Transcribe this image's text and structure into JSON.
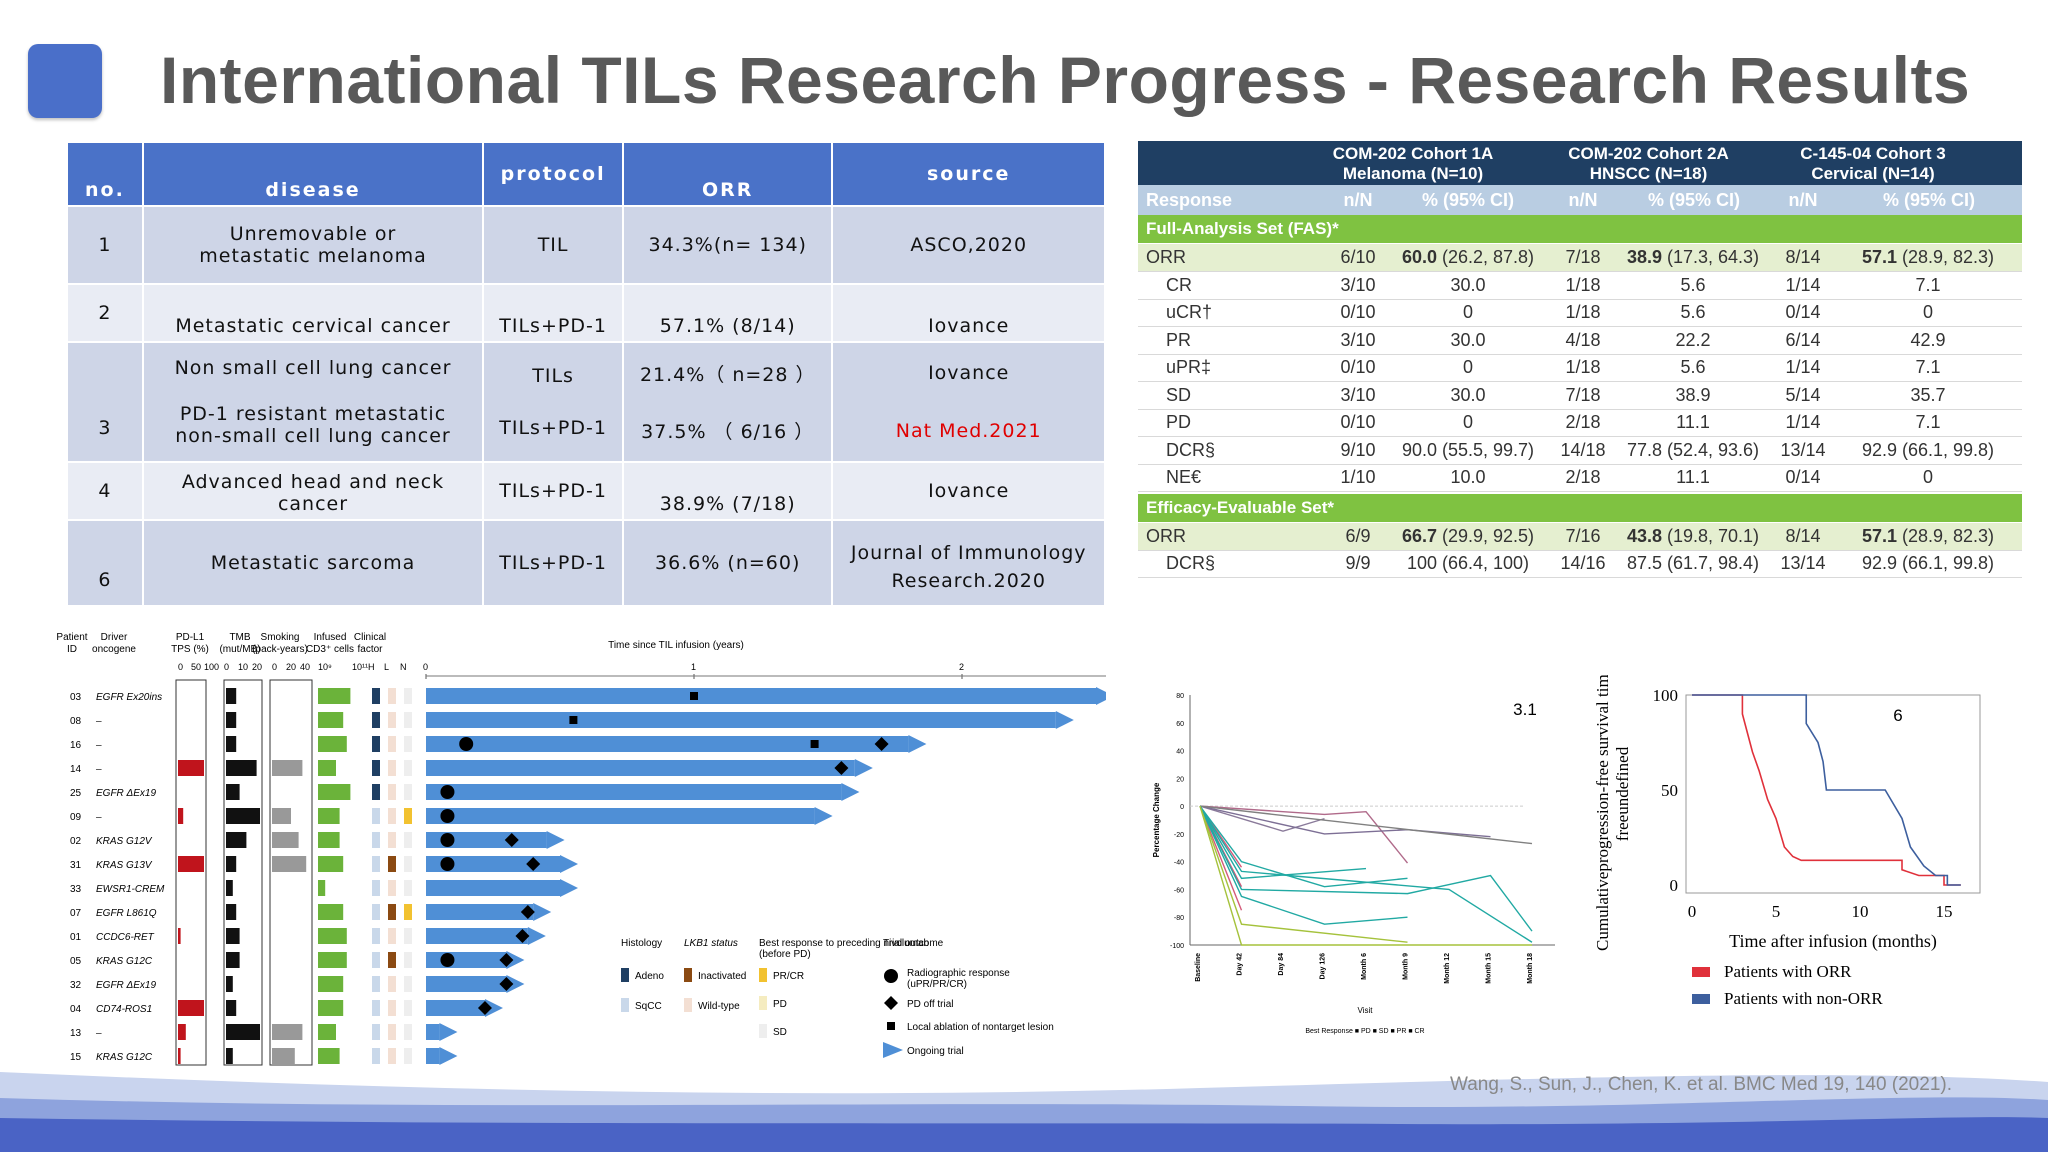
{
  "slide": {
    "title": "International TILs Research Progress - Research Results",
    "credit": "Wang, S., Sun, J., Chen, K. et al. BMC Med 19, 140 (2021)."
  },
  "results_table": {
    "headers": [
      "no.",
      "disease",
      "protocol",
      "ORR",
      "source"
    ],
    "rows": [
      {
        "no": "1",
        "disease": "Unremovable or metastatic melanoma",
        "protocol": "TIL",
        "orr": "34.3%(n= 134)",
        "source": "ASCO,2020"
      },
      {
        "no": "2",
        "disease": "Metastatic cervical cancer",
        "protocol": "TILs+PD-1",
        "orr": "57.1% (8/14)",
        "source": "Iovance"
      },
      {
        "no": "3",
        "disease_a": "Non small cell lung cancer",
        "disease_b": "PD-1 resistant metastatic non-small cell lung cancer",
        "protocol_a": "TILs",
        "protocol_b": "TILs+PD-1",
        "orr_a": "21.4%（ n=28 ）",
        "orr_b": "37.5% （ 6/16 ）",
        "source_a": "Iovance",
        "source_b": "Nat Med.2021"
      },
      {
        "no": "4",
        "disease": "Advanced head and neck cancer",
        "protocol": "TILs+PD-1",
        "orr": "38.9% (7/18)",
        "source": "Iovance"
      },
      {
        "no": "6",
        "disease": "Metastatic sarcoma",
        "protocol": "TILs+PD-1",
        "orr": "36.6% (n=60)",
        "source": "Journal of Immunology Research.2020"
      }
    ]
  },
  "efficacy": {
    "groups": [
      "COM-202 Cohort 1A Melanoma (N=10)",
      "COM-202 Cohort 2A HNSCC (N=18)",
      "C-145-04 Cohort 3 Cervical (N=14)"
    ],
    "subheaders": [
      "Response",
      "n/N",
      "% (95% CI)",
      "n/N",
      "% (95% CI)",
      "n/N",
      "% (95% CI)"
    ],
    "fas_label": "Full-Analysis Set (FAS)*",
    "ees_label": "Efficacy-Evaluable Set*",
    "fas_rows": [
      {
        "label": "ORR",
        "c1": "6/10",
        "p1b": "60.0",
        "p1": "(26.2, 87.8)",
        "c2": "7/18",
        "p2b": "38.9",
        "p2": "(17.3, 64.3)",
        "c3": "8/14",
        "p3b": "57.1",
        "p3": "(28.9, 82.3)"
      },
      {
        "label": "CR",
        "c1": "3/10",
        "p1": "30.0",
        "c2": "1/18",
        "p2": "5.6",
        "c3": "1/14",
        "p3": "7.1"
      },
      {
        "label": "uCR†",
        "c1": "0/10",
        "p1": "0",
        "c2": "1/18",
        "p2": "5.6",
        "c3": "0/14",
        "p3": "0"
      },
      {
        "label": "PR",
        "c1": "3/10",
        "p1": "30.0",
        "c2": "4/18",
        "p2": "22.2",
        "c3": "6/14",
        "p3": "42.9"
      },
      {
        "label": "uPR‡",
        "c1": "0/10",
        "p1": "0",
        "c2": "1/18",
        "p2": "5.6",
        "c3": "1/14",
        "p3": "7.1"
      },
      {
        "label": "SD",
        "c1": "3/10",
        "p1": "30.0",
        "c2": "7/18",
        "p2": "38.9",
        "c3": "5/14",
        "p3": "35.7"
      },
      {
        "label": "PD",
        "c1": "0/10",
        "p1": "0",
        "c2": "2/18",
        "p2": "11.1",
        "c3": "1/14",
        "p3": "7.1"
      },
      {
        "label": "DCR§",
        "c1": "9/10",
        "p1": "90.0 (55.5, 99.7)",
        "c2": "14/18",
        "p2": "77.8 (52.4, 93.6)",
        "c3": "13/14",
        "p3": "92.9 (66.1, 99.8)"
      },
      {
        "label": "NE€",
        "c1": "1/10",
        "p1": "10.0",
        "c2": "2/18",
        "p2": "11.1",
        "c3": "0/14",
        "p3": "0"
      }
    ],
    "ees_rows": [
      {
        "label": "ORR",
        "c1": "6/9",
        "p1b": "66.7",
        "p1": "(29.9, 92.5)",
        "c2": "7/16",
        "p2b": "43.8",
        "p2": "(19.8, 70.1)",
        "c3": "8/14",
        "p3b": "57.1",
        "p3": "(28.9, 82.3)"
      },
      {
        "label": "DCR§",
        "c1": "9/9",
        "p1": "100 (66.4, 100)",
        "c2": "14/16",
        "p2": "87.5 (61.7, 98.4)",
        "c3": "13/14",
        "p3": "92.9 (66.1, 99.8)"
      }
    ]
  },
  "swimmer": {
    "col_headers": [
      "Patient ID",
      "Driver oncogene",
      "PD-L1 TPS (%)",
      "TMB (mut/MB)",
      "Smoking (pack-years)",
      "Infused CD3+ cells",
      "Clinical factor"
    ],
    "axis_title": "Time since TIL infusion (years)",
    "x_ticks": [
      "0",
      "1",
      "2"
    ],
    "pdl1_ticks": [
      "0",
      "50",
      "100"
    ],
    "tmb_ticks": [
      "0",
      "10",
      "20"
    ],
    "smk_ticks": [
      "0",
      "20",
      "40"
    ],
    "cd3_ticks": [
      "10⁹",
      "10¹¹"
    ],
    "clin_ticks": [
      "H",
      "L",
      "N"
    ],
    "patients": [
      {
        "id": "03",
        "onc": "EGFR Ex20ins",
        "years": 2.5
      },
      {
        "id": "08",
        "onc": "–",
        "years": 2.35
      },
      {
        "id": "16",
        "onc": "–",
        "years": 1.8
      },
      {
        "id": "14",
        "onc": "–",
        "years": 1.6
      },
      {
        "id": "25",
        "onc": "EGFR ΔEx19",
        "years": 1.55
      },
      {
        "id": "09",
        "onc": "–",
        "years": 1.45
      },
      {
        "id": "02",
        "onc": "KRAS G12V",
        "years": 0.45
      },
      {
        "id": "31",
        "onc": "KRAS G13V",
        "years": 0.5
      },
      {
        "id": "33",
        "onc": "EWSR1-CREM",
        "years": 0.5
      },
      {
        "id": "07",
        "onc": "EGFR L861Q",
        "years": 0.4
      },
      {
        "id": "01",
        "onc": "CCDC6-RET",
        "years": 0.38
      },
      {
        "id": "05",
        "onc": "KRAS G12C",
        "years": 0.3
      },
      {
        "id": "32",
        "onc": "EGFR ΔEx19",
        "years": 0.3
      },
      {
        "id": "04",
        "onc": "CD74-ROS1",
        "years": 0.22
      },
      {
        "id": "13",
        "onc": "–",
        "years": 0.05
      },
      {
        "id": "15",
        "onc": "KRAS G12C",
        "years": 0.05
      }
    ],
    "legend": {
      "histology_title": "Histology",
      "histology": [
        "Adeno",
        "SqCC"
      ],
      "lkb1_title": "LKB1 status",
      "lkb1": [
        "Inactivated",
        "Wild-type"
      ],
      "best_title": "Best response to preceding nivolumab (before PD)",
      "best": [
        "PR/CR",
        "PD",
        "SD"
      ],
      "outcome_title": "Trial outcome",
      "outcome": [
        "Radiographic response (uPR/PR/CR)",
        "PD off trial",
        "Local ablation of nontarget lesion",
        "Ongoing trial"
      ]
    }
  },
  "spider": {
    "label": "3.1",
    "ylabel": "Percentage Change",
    "xlabel": "Visit",
    "x_ticks": [
      "Baseline",
      "Day 42",
      "Day 84",
      "Day 126",
      "Month 6",
      "Month 9",
      "Month 12",
      "Month 15",
      "Month 18"
    ],
    "y_ticks": [
      "80",
      "60",
      "40",
      "20",
      "0",
      "-20",
      "-40",
      "-60",
      "-80",
      "-100"
    ],
    "legend": "Best Response ■ PD ■ SD ■ PR ■ CR"
  },
  "pfs": {
    "label": "6",
    "ylabel": "Cumulative progression-free survival time (%)",
    "xlabel": "Time after infusion (months)",
    "x_ticks": [
      "0",
      "5",
      "10",
      "15"
    ],
    "y_ticks": [
      "100",
      "50",
      "0"
    ],
    "legend": [
      "Patients with ORR",
      "Patients with non-ORR"
    ],
    "colors": {
      "orr": "#e0313b",
      "non_orr": "#3d5f9e"
    }
  },
  "colors": {
    "accent": "#4a72c8",
    "title": "#595959",
    "eff_header": "#1f3f63",
    "eff_section": "#7fc241"
  }
}
